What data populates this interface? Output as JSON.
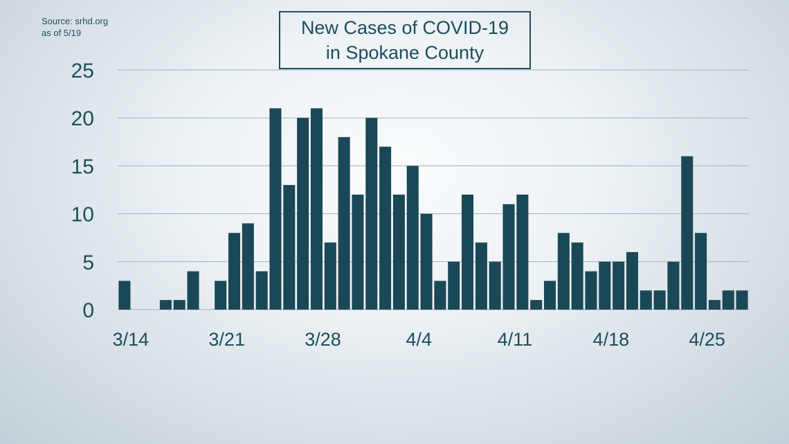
{
  "source": {
    "line1": "Source: srhd.org",
    "line2": "as of 5/19"
  },
  "chart_data": {
    "type": "bar",
    "title_line1": "New Cases of COVID-19",
    "title_line2": "in Spokane County",
    "xlabel": "",
    "ylabel": "",
    "ylim": [
      0,
      25
    ],
    "yticks": [
      0,
      5,
      10,
      15,
      20,
      25
    ],
    "xtick_labels": [
      "3/14",
      "3/21",
      "3/28",
      "4/4",
      "4/11",
      "4/18",
      "4/25"
    ],
    "grid": true,
    "bar_color": "#1b4856",
    "categories": [
      "3/14",
      "3/15",
      "3/16",
      "3/17",
      "3/18",
      "3/19",
      "3/20",
      "3/21",
      "3/22",
      "3/23",
      "3/24",
      "3/25",
      "3/26",
      "3/27",
      "3/28",
      "3/29",
      "3/30",
      "3/31",
      "4/1",
      "4/2",
      "4/3",
      "4/4",
      "4/5",
      "4/6",
      "4/7",
      "4/8",
      "4/9",
      "4/10",
      "4/11",
      "4/12",
      "4/13",
      "4/14",
      "4/15",
      "4/16",
      "4/17",
      "4/18",
      "4/19",
      "4/20",
      "4/21",
      "4/22",
      "4/23",
      "4/24",
      "4/25",
      "4/26",
      "4/27",
      "4/28"
    ],
    "values": [
      3,
      0,
      0,
      1,
      1,
      4,
      0,
      3,
      8,
      9,
      4,
      21,
      13,
      20,
      21,
      7,
      18,
      12,
      20,
      17,
      12,
      15,
      10,
      3,
      5,
      12,
      7,
      5,
      11,
      12,
      1,
      3,
      8,
      7,
      4,
      5,
      5,
      6,
      2,
      2,
      5,
      16,
      8,
      1,
      2,
      2
    ]
  }
}
